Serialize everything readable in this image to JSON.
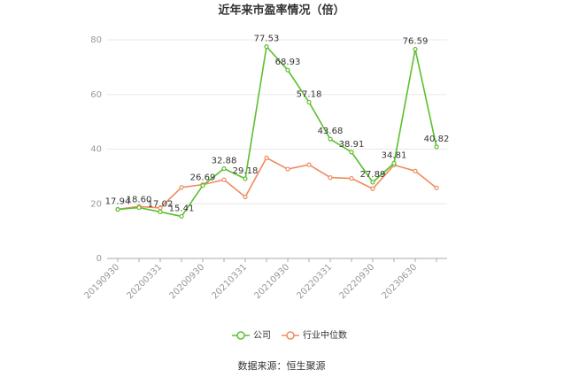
{
  "chart_data": {
    "type": "line",
    "title": "近年来市盈率情况（倍）",
    "categories": [
      "20190930",
      null,
      "20200331",
      null,
      "20200930",
      null,
      "20210331",
      null,
      "20210930",
      null,
      "20220331",
      null,
      "20220930",
      null,
      "20230630",
      null
    ],
    "series": [
      {
        "name": "公司",
        "color": "#5ac02c",
        "values": [
          17.94,
          18.6,
          17.02,
          15.41,
          26.69,
          32.88,
          29.18,
          77.53,
          68.93,
          57.18,
          43.68,
          38.91,
          27.89,
          34.81,
          76.59,
          40.82
        ],
        "value_labels": [
          "17.94",
          "18.60",
          "17.02",
          "15.41",
          "26.69",
          "32.88",
          "29.18",
          "77.53",
          "68.93",
          "57.18",
          "43.68",
          "38.91",
          "27.89",
          "34.81",
          "76.59",
          "40.82"
        ]
      },
      {
        "name": "行业中位数",
        "color": "#f08a5d",
        "values": [
          18,
          19,
          18.5,
          26,
          27,
          28.8,
          22.5,
          36.8,
          32.7,
          34.3,
          29.6,
          29.3,
          25.5,
          34.2,
          32,
          25.8
        ]
      }
    ],
    "ylim": [
      0,
      80
    ],
    "yticks": [
      0,
      20,
      40,
      60,
      80
    ],
    "grid": true,
    "source": "数据来源：恒生聚源"
  }
}
